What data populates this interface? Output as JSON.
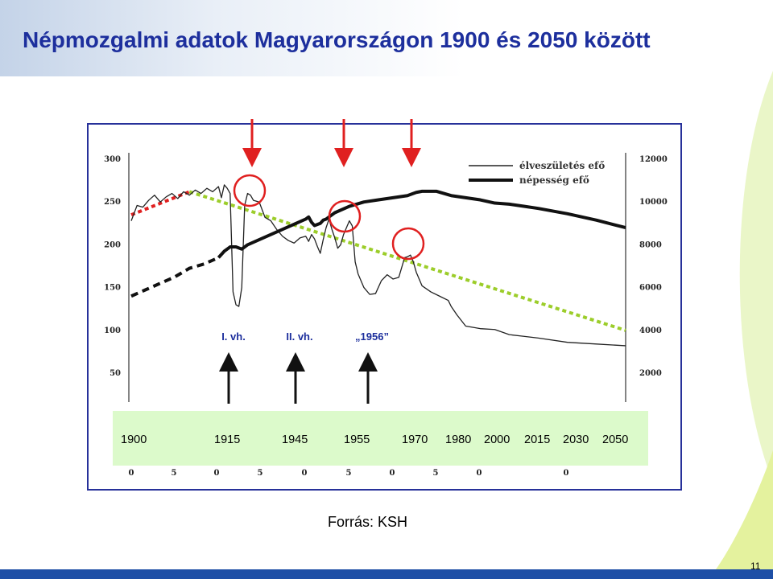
{
  "slide": {
    "title": "Népmozgalmi adatok Magyarországon 1900 és 2050 között",
    "source": "Forrás: KSH",
    "page_number": "11"
  },
  "colors": {
    "title": "#1d2f9d",
    "frame": "#27319a",
    "year_band": "#dcfacb",
    "highlight": "#e02020",
    "trend_green": "#9ccd2a",
    "trend_red": "#e02020",
    "bottom_band": "#1e4fa6"
  },
  "year_band": {
    "years": [
      "1900",
      "1915",
      "1945",
      "1955",
      "1970",
      "1980",
      "2000",
      "2015",
      "2030",
      "2050"
    ]
  },
  "chart_data": {
    "type": "line",
    "left_axis": {
      "ticks": [
        "300",
        "250",
        "200",
        "150",
        "100",
        "50"
      ],
      "range": [
        50,
        300
      ]
    },
    "right_axis": {
      "ticks": [
        "12000",
        "10000",
        "8000",
        "6000",
        "4000",
        "2000"
      ],
      "range": [
        2000,
        12000
      ]
    },
    "x_tick_labels": [
      "0",
      "5",
      "0",
      "5",
      "0",
      "5",
      "0",
      "5",
      "0",
      "0"
    ],
    "legend": [
      {
        "label": "élveszületés efő",
        "style": "thin"
      },
      {
        "label": "népesség efő",
        "style": "thick"
      }
    ],
    "events": [
      {
        "label": "I. vh.",
        "x": 1915
      },
      {
        "label": "II. vh.",
        "x": 1945
      },
      {
        "label": "„1956”",
        "x": 1955
      }
    ],
    "x_range": [
      1880,
      2050
    ],
    "series": [
      {
        "name": "élveszületés efő",
        "axis": "left",
        "x": [
          1880,
          1882,
          1884,
          1886,
          1888,
          1890,
          1892,
          1894,
          1896,
          1898,
          1900,
          1902,
          1904,
          1906,
          1908,
          1910,
          1911,
          1912,
          1913,
          1914,
          1915,
          1916,
          1917,
          1918,
          1919,
          1920,
          1921,
          1922,
          1924,
          1926,
          1928,
          1930,
          1932,
          1934,
          1936,
          1938,
          1940,
          1941,
          1942,
          1943,
          1944,
          1945,
          1946,
          1947,
          1948,
          1949,
          1950,
          1951,
          1952,
          1953,
          1954,
          1955,
          1956,
          1957,
          1958,
          1960,
          1962,
          1964,
          1966,
          1968,
          1970,
          1972,
          1974,
          1975,
          1976,
          1977,
          1978,
          1980,
          1983,
          1986,
          1989,
          1990,
          1992,
          1995,
          2000,
          2005,
          2010,
          2015,
          2020,
          2030,
          2040,
          2050
        ],
        "values": [
          228,
          246,
          244,
          252,
          258,
          250,
          256,
          260,
          254,
          262,
          258,
          264,
          260,
          266,
          262,
          268,
          255,
          270,
          266,
          260,
          145,
          130,
          128,
          150,
          246,
          260,
          258,
          252,
          250,
          232,
          228,
          218,
          210,
          205,
          202,
          208,
          210,
          204,
          212,
          207,
          198,
          190,
          206,
          220,
          230,
          218,
          208,
          196,
          200,
          212,
          220,
          228,
          222,
          180,
          166,
          150,
          142,
          143,
          158,
          165,
          160,
          162,
          185,
          186,
          188,
          180,
          168,
          152,
          145,
          140,
          135,
          128,
          118,
          105,
          102,
          101,
          95,
          93,
          91,
          86,
          84,
          82
        ]
      },
      {
        "name": "népesség efő",
        "axis": "right",
        "x": [
          1880,
          1885,
          1890,
          1895,
          1900,
          1905,
          1910,
          1912,
          1914,
          1916,
          1918,
          1920,
          1925,
          1930,
          1935,
          1940,
          1941,
          1942,
          1943,
          1944,
          1945,
          1946,
          1947,
          1948,
          1950,
          1955,
          1960,
          1965,
          1970,
          1975,
          1978,
          1980,
          1985,
          1990,
          1995,
          2000,
          2005,
          2010,
          2015,
          2020,
          2030,
          2040,
          2050
        ],
        "values": [
          5600,
          5900,
          6200,
          6500,
          6900,
          7100,
          7400,
          7700,
          7900,
          7900,
          7800,
          8000,
          8300,
          8600,
          8900,
          9200,
          9300,
          9050,
          8900,
          8950,
          9000,
          9150,
          9200,
          9300,
          9500,
          9800,
          10000,
          10100,
          10200,
          10300,
          10450,
          10500,
          10500,
          10300,
          10200,
          10100,
          9950,
          9900,
          9800,
          9700,
          9450,
          9150,
          8800
        ]
      }
    ],
    "trend_lines": [
      {
        "color": "red",
        "points": [
          [
            1880,
            235
          ],
          [
            1900,
            262
          ]
        ]
      },
      {
        "color": "green",
        "points": [
          [
            1900,
            262
          ],
          [
            2050,
            100
          ]
        ]
      }
    ]
  }
}
